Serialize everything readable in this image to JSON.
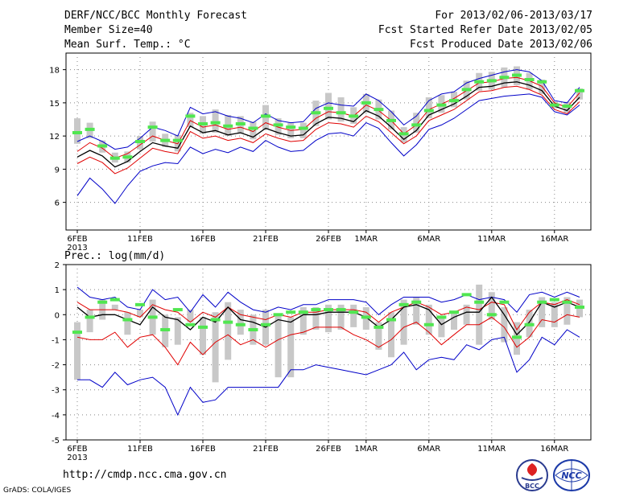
{
  "header": {
    "title": "DERF/NCC/BCC Monthly Forecast",
    "member_size": "Member Size=40",
    "variable": "Mean Surf. Temp.: °C",
    "period": "For 2013/02/06-2013/03/17",
    "refer_date": "Fcst Started Refer Date 2013/02/05",
    "produced_date": "Fcst Produced Date 2013/02/06"
  },
  "footer": {
    "url": "http://cmdp.ncc.cma.gov.cn",
    "credit": "GrADS: COLA/IGES",
    "logo_left_text": "BCC",
    "logo_right_text": "NCC"
  },
  "colors": {
    "ensemble_mean": "#000000",
    "spread": "#e00000",
    "extreme": "#0000c8",
    "box": "#c8c8c8",
    "median": "#50e650"
  },
  "chart_data": [
    {
      "type": "line",
      "title": "Mean Surf. Temp.: °C",
      "xlabel": "",
      "ylabel": "°C",
      "ylim": [
        3.5,
        19.5
      ],
      "yticks": [
        6,
        9,
        12,
        15,
        18
      ],
      "days": 40,
      "xticks": [
        {
          "day": 0,
          "label": "6FEB",
          "sub": "2013"
        },
        {
          "day": 5,
          "label": "11FEB"
        },
        {
          "day": 10,
          "label": "16FEB"
        },
        {
          "day": 15,
          "label": "21FEB"
        },
        {
          "day": 20,
          "label": "26FEB"
        },
        {
          "day": 23,
          "label": "1MAR"
        },
        {
          "day": 28,
          "label": "6MAR"
        },
        {
          "day": 33,
          "label": "11MAR"
        },
        {
          "day": 38,
          "label": "16MAR"
        }
      ],
      "series": [
        {
          "name": "max",
          "role": "extreme",
          "values": [
            11.5,
            12,
            11.5,
            10.8,
            11,
            11.8,
            12.8,
            12.5,
            12,
            14.6,
            14,
            14.2,
            13.8,
            13.6,
            13.2,
            14,
            13.4,
            13.2,
            13.3,
            14.5,
            15,
            14.8,
            14.7,
            15.8,
            15.2,
            14.2,
            13,
            13.8,
            15.2,
            15.8,
            16,
            16.8,
            17.2,
            17.5,
            17.8,
            18,
            17.8,
            17,
            15.2,
            15,
            16.4
          ]
        },
        {
          "name": "mean+sd",
          "role": "spread",
          "values": [
            10.6,
            11.4,
            10.9,
            10,
            10.4,
            11.2,
            12,
            11.6,
            11.3,
            13.4,
            12.8,
            13,
            12.6,
            12.8,
            12.4,
            13.2,
            12.8,
            12.5,
            12.6,
            13.6,
            14.2,
            14.1,
            13.8,
            14.8,
            14.3,
            13.4,
            12.2,
            13,
            14.4,
            14.9,
            15.4,
            16.1,
            16.8,
            16.9,
            17.2,
            17.3,
            17,
            16.5,
            15,
            14.6,
            15.9
          ]
        },
        {
          "name": "mean",
          "role": "mean",
          "values": [
            10.1,
            10.7,
            10.2,
            9.2,
            9.7,
            10.6,
            11.4,
            11.1,
            10.9,
            12.9,
            12.3,
            12.5,
            12.1,
            12.3,
            11.9,
            12.7,
            12.3,
            12,
            12.1,
            13.1,
            13.7,
            13.6,
            13.3,
            14.3,
            13.8,
            12.8,
            11.7,
            12.5,
            13.9,
            14.4,
            14.9,
            15.6,
            16.4,
            16.5,
            16.8,
            16.9,
            16.6,
            16.1,
            14.7,
            14.3,
            15.5
          ]
        },
        {
          "name": "mean-sd",
          "role": "spread",
          "values": [
            9.5,
            10.1,
            9.6,
            8.6,
            9.1,
            10,
            10.9,
            10.6,
            10.4,
            12.4,
            11.8,
            12,
            11.6,
            11.8,
            11.4,
            12.2,
            11.8,
            11.5,
            11.6,
            12.6,
            13.2,
            13.1,
            12.8,
            13.8,
            13.3,
            12.3,
            11.3,
            12,
            13.4,
            13.9,
            14.4,
            15.2,
            16,
            16.1,
            16.4,
            16.5,
            16.2,
            15.7,
            14.4,
            14,
            15.1
          ]
        },
        {
          "name": "min",
          "role": "extreme",
          "values": [
            6.6,
            8.2,
            7.2,
            5.9,
            7.5,
            8.8,
            9.3,
            9.6,
            9.5,
            11,
            10.4,
            10.8,
            10.5,
            11,
            10.6,
            11.6,
            11,
            10.6,
            10.7,
            11.6,
            12.2,
            12.3,
            12,
            13.2,
            12.7,
            11.4,
            10.2,
            11.2,
            12.6,
            13,
            13.6,
            14.4,
            15.2,
            15.4,
            15.6,
            15.7,
            15.8,
            15.5,
            14.2,
            13.9,
            14.8
          ]
        }
      ],
      "box_low": [
        11.3,
        11.8,
        10.5,
        9.6,
        9.6,
        10.8,
        11.5,
        11,
        10.6,
        12.8,
        12.2,
        12.3,
        12,
        12.2,
        11.7,
        12.6,
        12.1,
        11.8,
        11.8,
        12.9,
        13.5,
        13.3,
        13.1,
        14.1,
        13.5,
        12.6,
        11.4,
        12.3,
        13.6,
        14.1,
        14.6,
        15.3,
        16.1,
        16.2,
        16.4,
        16.6,
        16.2,
        15.8,
        14.5,
        14.1,
        15.3
      ],
      "box_high": [
        13.6,
        13.2,
        11.6,
        10.5,
        10.6,
        12,
        13.3,
        12.2,
        12.1,
        14.1,
        13.8,
        14.4,
        13.9,
        13.8,
        13.3,
        14.8,
        13.6,
        13.2,
        13.2,
        15.2,
        15.9,
        15.5,
        14.6,
        15.8,
        15.3,
        14.3,
        12.8,
        14.1,
        15.5,
        15.7,
        16,
        17,
        17.7,
        17.8,
        18.2,
        18.3,
        17.7,
        17.1,
        15.1,
        15.1,
        16.3
      ],
      "median": [
        12.3,
        12.6,
        11.1,
        10,
        10.1,
        11.5,
        12.8,
        11.6,
        11.6,
        13.8,
        13.1,
        13.2,
        12.9,
        13.1,
        12.7,
        13.8,
        13,
        12.8,
        12.7,
        14.1,
        14.5,
        14.1,
        13.8,
        15,
        14.4,
        13.4,
        12.2,
        13,
        14.3,
        14.8,
        15.2,
        16.2,
        16.9,
        17,
        17.3,
        17.5,
        17.1,
        16.9,
        14.8,
        14.7,
        16.1
      ]
    },
    {
      "type": "line",
      "title": "Prec.: log(mm/d)",
      "xlabel": "",
      "ylabel": "log(mm/d)",
      "ylim": [
        -5,
        2
      ],
      "yticks": [
        -5,
        -4,
        -3,
        -2,
        -1,
        0,
        1,
        2
      ],
      "days": 40,
      "xticks": [
        {
          "day": 0,
          "label": "6FEB",
          "sub": "2013"
        },
        {
          "day": 5,
          "label": "11FEB"
        },
        {
          "day": 10,
          "label": "16FEB"
        },
        {
          "day": 15,
          "label": "21FEB"
        },
        {
          "day": 20,
          "label": "26FEB"
        },
        {
          "day": 23,
          "label": "1MAR"
        },
        {
          "day": 28,
          "label": "6MAR"
        },
        {
          "day": 33,
          "label": "11MAR"
        },
        {
          "day": 38,
          "label": "16MAR"
        }
      ],
      "series": [
        {
          "name": "max",
          "role": "extreme",
          "values": [
            1.1,
            0.7,
            0.6,
            0.7,
            0.3,
            0.2,
            1,
            0.6,
            0.7,
            0.1,
            0.8,
            0.3,
            0.9,
            0.5,
            0.2,
            0.1,
            0.3,
            0.2,
            0.4,
            0.4,
            0.6,
            0.6,
            0.6,
            0.5,
            0,
            0.4,
            0.7,
            0.7,
            0.7,
            0.5,
            0.6,
            0.8,
            0.6,
            0.7,
            0.6,
            0.1,
            0.8,
            0.9,
            0.7,
            0.9,
            0.7
          ]
        },
        {
          "name": "mean+sd",
          "role": "spread",
          "values": [
            0.5,
            0.2,
            0.2,
            0.2,
            0.1,
            -0.1,
            0.4,
            0.2,
            0.1,
            -0.3,
            0.1,
            -0.1,
            0.3,
            0,
            -0.1,
            -0.2,
            0,
            -0.1,
            0.1,
            0.1,
            0.2,
            0.2,
            0.2,
            0.1,
            -0.3,
            0.1,
            0.3,
            0.5,
            0.3,
            0,
            0.1,
            0.3,
            0.2,
            0.5,
            0.4,
            -0.6,
            0.1,
            0.5,
            0.4,
            0.6,
            0.4
          ]
        },
        {
          "name": "mean",
          "role": "mean",
          "values": [
            0.3,
            -0.1,
            0,
            0,
            -0.2,
            -0.4,
            0.3,
            -0.1,
            -0.2,
            -0.6,
            -0.1,
            -0.3,
            0.3,
            -0.2,
            -0.3,
            -0.5,
            -0.2,
            -0.3,
            0,
            0,
            0.1,
            0.1,
            0.1,
            -0.1,
            -0.5,
            -0.2,
            0.3,
            0.4,
            0.2,
            -0.4,
            -0.1,
            0.1,
            0.1,
            0.7,
            0,
            -0.8,
            -0.3,
            0.5,
            0.3,
            0.5,
            0.3
          ]
        },
        {
          "name": "mean-sd",
          "role": "spread",
          "values": [
            -0.9,
            -1,
            -1,
            -0.7,
            -1.3,
            -0.9,
            -0.8,
            -1.3,
            -2,
            -1.1,
            -1.6,
            -1.1,
            -0.8,
            -1.2,
            -1,
            -1.3,
            -1,
            -0.8,
            -0.7,
            -0.5,
            -0.5,
            -0.5,
            -0.8,
            -1,
            -1.3,
            -1,
            -0.5,
            -0.3,
            -0.7,
            -1.2,
            -0.8,
            -0.4,
            -0.4,
            -0.1,
            -0.5,
            -1.3,
            -0.9,
            -0.2,
            -0.3,
            0,
            -0.1
          ]
        },
        {
          "name": "min",
          "role": "extreme",
          "values": [
            -2.6,
            -2.6,
            -2.9,
            -2.3,
            -2.8,
            -2.6,
            -2.5,
            -2.9,
            -4,
            -2.9,
            -3.5,
            -3.4,
            -2.9,
            -2.9,
            -2.9,
            -2.9,
            -2.9,
            -2.2,
            -2.2,
            -2,
            -2.1,
            -2.2,
            -2.3,
            -2.4,
            -2.2,
            -2,
            -1.5,
            -2.2,
            -1.8,
            -1.7,
            -1.8,
            -1.2,
            -1.4,
            -1,
            -0.9,
            -2.3,
            -1.8,
            -0.9,
            -1.2,
            -0.6,
            -0.9
          ]
        },
        {
          "name": "range",
          "role": "none",
          "values": []
        }
      ],
      "box_low": [
        -2.6,
        -0.7,
        -0.2,
        0.2,
        -0.8,
        -0.1,
        -0.8,
        -1.3,
        -1.2,
        -0.3,
        -1.6,
        -2.7,
        -1.8,
        -0.8,
        -1.2,
        -1.2,
        -2.5,
        -2.5,
        -0.8,
        -0.6,
        -0.7,
        -0.6,
        -0.5,
        -0.6,
        -1.4,
        -1.7,
        -1.2,
        -0.4,
        -0.8,
        -0.9,
        -0.6,
        -0.4,
        -1.2,
        -0.2,
        -1.1,
        -1.6,
        -0.9,
        -0.5,
        -0.5,
        -0.4,
        -0.1
      ],
      "box_high": [
        -0.3,
        0.2,
        0.6,
        0.4,
        0.1,
        0.2,
        0.6,
        0,
        -0.1,
        0.2,
        -0.1,
        0.1,
        0.5,
        0.2,
        0,
        0.2,
        0,
        -0.1,
        0.3,
        0.3,
        0.4,
        0.4,
        0.4,
        0.3,
        -0.3,
        0.1,
        0.6,
        0.7,
        0.4,
        -0.1,
        0.1,
        0.4,
        1.2,
        0.9,
        0.3,
        -0.3,
        0.2,
        0.7,
        0.5,
        0.7,
        0.6
      ],
      "median": [
        -0.7,
        -0.1,
        0.5,
        0.6,
        -0.2,
        0.4,
        -0.1,
        -0.6,
        0.2,
        -0.4,
        -0.5,
        -0.2,
        -0.3,
        -0.4,
        -0.6,
        -0.4,
        0,
        0.1,
        0.1,
        0.2,
        0.2,
        0.2,
        0.1,
        -0.1,
        -0.5,
        -0.2,
        0.4,
        0.5,
        -0.4,
        -0.1,
        0.1,
        0.8,
        0.5,
        0,
        0.5,
        -0.9,
        -0.4,
        0.5,
        0.6,
        0.5,
        0.3
      ]
    }
  ]
}
